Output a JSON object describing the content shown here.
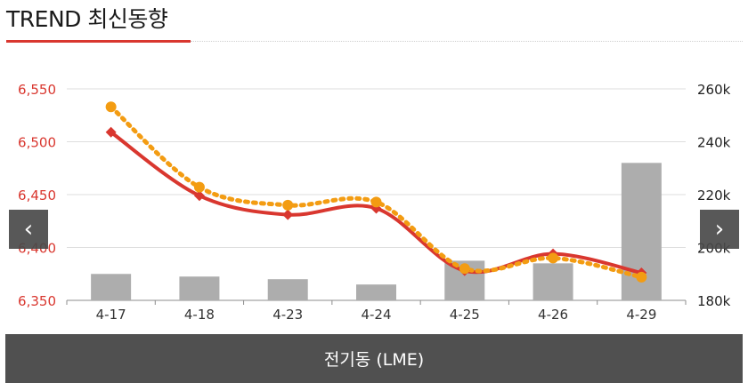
{
  "header": {
    "title": "TREND 최신동향"
  },
  "nav": {
    "prev_glyph": "‹",
    "next_glyph": "›"
  },
  "footer": {
    "label": "전기동 (LME)"
  },
  "chart_data": {
    "type": "bar+line",
    "categories": [
      "4-17",
      "4-18",
      "4-23",
      "4-24",
      "4-25",
      "4-26",
      "4-29"
    ],
    "y_left": {
      "ticks": [
        "6,350",
        "6,400",
        "6,450",
        "6,500",
        "6,550"
      ],
      "range": [
        6350,
        6550
      ],
      "color": "#d9372f"
    },
    "y_right": {
      "ticks": [
        "180k",
        "200k",
        "220k",
        "240k",
        "260k"
      ],
      "range": [
        180000,
        260000
      ]
    },
    "grid": true,
    "series": [
      {
        "type": "bar",
        "axis": "right",
        "color": "#adadad",
        "values": [
          190000,
          189000,
          188000,
          186000,
          195000,
          194000,
          232000
        ]
      },
      {
        "type": "line",
        "axis": "left",
        "style": "solid",
        "marker": "diamond",
        "color": "#d9372f",
        "values": [
          6509,
          6449,
          6431,
          6437,
          6378,
          6394,
          6376
        ]
      },
      {
        "type": "line",
        "axis": "left",
        "style": "dotted",
        "marker": "circle",
        "color": "#f39c12",
        "values": [
          6533,
          6457,
          6440,
          6443,
          6380,
          6390,
          6372
        ]
      }
    ]
  }
}
